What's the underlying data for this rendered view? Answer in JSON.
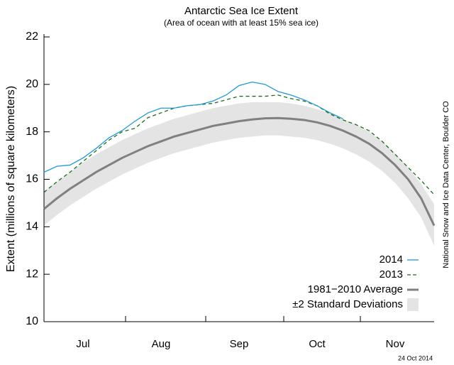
{
  "chart_data": {
    "type": "line",
    "title": "Antarctic Sea Ice Extent",
    "subtitle": "(Area of ocean with at least 15% sea ice)",
    "y_label": "Extent (millions of square kilometers)",
    "source": "National Snow and Ice Data Center, Boulder CO",
    "date_note": "24 Oct 2014",
    "categories": [
      null,
      null,
      null,
      "Jul",
      null,
      null,
      null,
      null,
      null,
      "Aug",
      null,
      null,
      null,
      null,
      null,
      "Sep",
      null,
      null,
      null,
      null,
      null,
      "Oct",
      null,
      null,
      null,
      null,
      null,
      "Nov",
      null,
      null,
      null
    ],
    "ylim": [
      10,
      22
    ],
    "yticks": [
      10,
      12,
      14,
      16,
      18,
      20,
      22
    ],
    "band": {
      "name": "±2 Standard Deviations",
      "color": "#e4e4e4",
      "upper": [
        15.5,
        15.9,
        16.3,
        16.7,
        17.05,
        17.35,
        17.65,
        17.9,
        18.15,
        18.35,
        18.55,
        18.7,
        18.85,
        19.0,
        19.1,
        19.2,
        19.25,
        19.25,
        19.25,
        19.2,
        19.1,
        18.95,
        18.8,
        18.55,
        18.3,
        18.0,
        17.6,
        17.1,
        16.5,
        15.8,
        14.95
      ],
      "lower": [
        14.05,
        14.5,
        14.9,
        15.25,
        15.6,
        15.9,
        16.2,
        16.45,
        16.7,
        16.9,
        17.1,
        17.25,
        17.4,
        17.55,
        17.65,
        17.75,
        17.8,
        17.85,
        17.85,
        17.8,
        17.75,
        17.65,
        17.5,
        17.3,
        17.05,
        16.75,
        16.35,
        15.85,
        15.2,
        14.4,
        13.2
      ]
    },
    "series": [
      {
        "name": "2014",
        "color": "#1f9ad6",
        "width": 1.3,
        "dash": false,
        "values": [
          16.3,
          16.55,
          16.6,
          16.9,
          17.3,
          17.75,
          18.05,
          18.45,
          18.8,
          19.0,
          19.0,
          19.1,
          19.15,
          19.3,
          19.55,
          19.95,
          20.1,
          20.0,
          19.7,
          19.55,
          19.35,
          19.1,
          18.8,
          18.55,
          null,
          null,
          null,
          null,
          null,
          null,
          null
        ]
      },
      {
        "name": "2013",
        "color": "#1c6a1c",
        "width": 1.3,
        "dash": true,
        "values": [
          15.45,
          15.9,
          16.3,
          16.75,
          17.2,
          17.65,
          18.0,
          18.15,
          18.6,
          18.8,
          19.0,
          19.1,
          19.15,
          19.2,
          19.35,
          19.5,
          19.5,
          19.5,
          19.55,
          19.4,
          19.3,
          19.1,
          18.75,
          18.5,
          18.3,
          18.05,
          17.6,
          17.05,
          16.5,
          15.95,
          15.35
        ]
      },
      {
        "name": "1981−2010 Average",
        "color": "#808080",
        "width": 3,
        "dash": false,
        "values": [
          14.75,
          15.2,
          15.6,
          15.95,
          16.3,
          16.6,
          16.9,
          17.15,
          17.4,
          17.6,
          17.8,
          17.95,
          18.1,
          18.25,
          18.35,
          18.45,
          18.52,
          18.57,
          18.58,
          18.55,
          18.5,
          18.4,
          18.25,
          18.05,
          17.8,
          17.5,
          17.1,
          16.6,
          16.0,
          15.2,
          14.05
        ]
      }
    ]
  }
}
